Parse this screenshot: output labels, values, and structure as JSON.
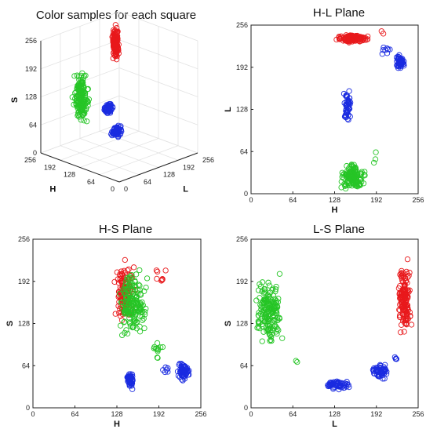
{
  "colors": {
    "red": "#e8191c",
    "green": "#26c526",
    "blue": "#1a2be0"
  },
  "chart_data": [
    {
      "type": "scatter",
      "projection": "3d",
      "title": "Color samples for each square",
      "xlabel": "H",
      "ylabel": "L",
      "zlabel": "S",
      "xlim": [
        0,
        256
      ],
      "ylim": [
        0,
        256
      ],
      "zlim": [
        0,
        256
      ],
      "ticks": [
        0,
        64,
        128,
        192,
        256
      ],
      "grid": true,
      "clusters": [
        {
          "color": "red",
          "n": 160,
          "h": [
            240,
            254
          ],
          "l": [
            224,
            245
          ],
          "s": [
            145,
            240
          ]
        },
        {
          "color": "green",
          "n": 170,
          "h": [
            128,
            175
          ],
          "l": [
            5,
            45
          ],
          "s": [
            70,
            220
          ]
        },
        {
          "color": "blue",
          "n": 70,
          "h": [
            140,
            150
          ],
          "l": [
            110,
            160
          ],
          "s": [
            25,
            60
          ]
        },
        {
          "color": "blue",
          "n": 60,
          "h": [
            225,
            245
          ],
          "l": [
            185,
            215
          ],
          "s": [
            40,
            70
          ]
        }
      ]
    },
    {
      "type": "scatter",
      "title": "H-L Plane",
      "xlabel": "H",
      "ylabel": "L",
      "xlim": [
        0,
        256
      ],
      "ylim": [
        0,
        256
      ],
      "ticks": [
        0,
        64,
        128,
        192,
        256
      ],
      "clusters": [
        {
          "color": "red",
          "n": 150,
          "x": [
            125,
            185
          ],
          "y": [
            228,
            244
          ]
        },
        {
          "color": "red",
          "n": 2,
          "x": [
            196,
            210
          ],
          "y": [
            240,
            248
          ]
        },
        {
          "color": "blue",
          "n": 50,
          "x": [
            141,
            155
          ],
          "y": [
            100,
            165
          ]
        },
        {
          "color": "blue",
          "n": 60,
          "x": [
            220,
            238
          ],
          "y": [
            185,
            215
          ]
        },
        {
          "color": "blue",
          "n": 8,
          "x": [
            195,
            215
          ],
          "y": [
            210,
            225
          ]
        },
        {
          "color": "green",
          "n": 150,
          "x": [
            132,
            180
          ],
          "y": [
            2,
            50
          ]
        },
        {
          "color": "green",
          "n": 3,
          "x": [
            180,
            196
          ],
          "y": [
            40,
            76
          ]
        }
      ]
    },
    {
      "type": "scatter",
      "title": "H-S Plane",
      "xlabel": "H",
      "ylabel": "S",
      "xlim": [
        0,
        256
      ],
      "ylim": [
        0,
        256
      ],
      "ticks": [
        0,
        64,
        128,
        192,
        256
      ],
      "clusters": [
        {
          "color": "red",
          "n": 140,
          "x": [
            120,
            160
          ],
          "y": [
            110,
            240
          ]
        },
        {
          "color": "red",
          "n": 8,
          "x": [
            175,
            215
          ],
          "y": [
            180,
            220
          ]
        },
        {
          "color": "green",
          "n": 170,
          "x": [
            125,
            180
          ],
          "y": [
            95,
            220
          ]
        },
        {
          "color": "green",
          "n": 12,
          "x": [
            180,
            200
          ],
          "y": [
            70,
            105
          ]
        },
        {
          "color": "blue",
          "n": 50,
          "x": [
            142,
            155
          ],
          "y": [
            22,
            60
          ]
        },
        {
          "color": "blue",
          "n": 60,
          "x": [
            218,
            242
          ],
          "y": [
            35,
            75
          ]
        },
        {
          "color": "blue",
          "n": 6,
          "x": [
            192,
            210
          ],
          "y": [
            50,
            65
          ]
        }
      ]
    },
    {
      "type": "scatter",
      "title": "L-S Plane",
      "xlabel": "L",
      "ylabel": "S",
      "xlim": [
        0,
        256
      ],
      "ylim": [
        0,
        256
      ],
      "ticks": [
        0,
        64,
        128,
        192,
        256
      ],
      "clusters": [
        {
          "color": "green",
          "n": 170,
          "x": [
            0,
            55
          ],
          "y": [
            75,
            220
          ]
        },
        {
          "color": "green",
          "n": 2,
          "x": [
            65,
            75
          ],
          "y": [
            66,
            72
          ]
        },
        {
          "color": "red",
          "n": 150,
          "x": [
            222,
            248
          ],
          "y": [
            95,
            238
          ]
        },
        {
          "color": "blue",
          "n": 60,
          "x": [
            105,
            160
          ],
          "y": [
            25,
            45
          ]
        },
        {
          "color": "blue",
          "n": 60,
          "x": [
            180,
            215
          ],
          "y": [
            40,
            72
          ]
        },
        {
          "color": "blue",
          "n": 4,
          "x": [
            215,
            228
          ],
          "y": [
            70,
            80
          ]
        }
      ]
    }
  ]
}
